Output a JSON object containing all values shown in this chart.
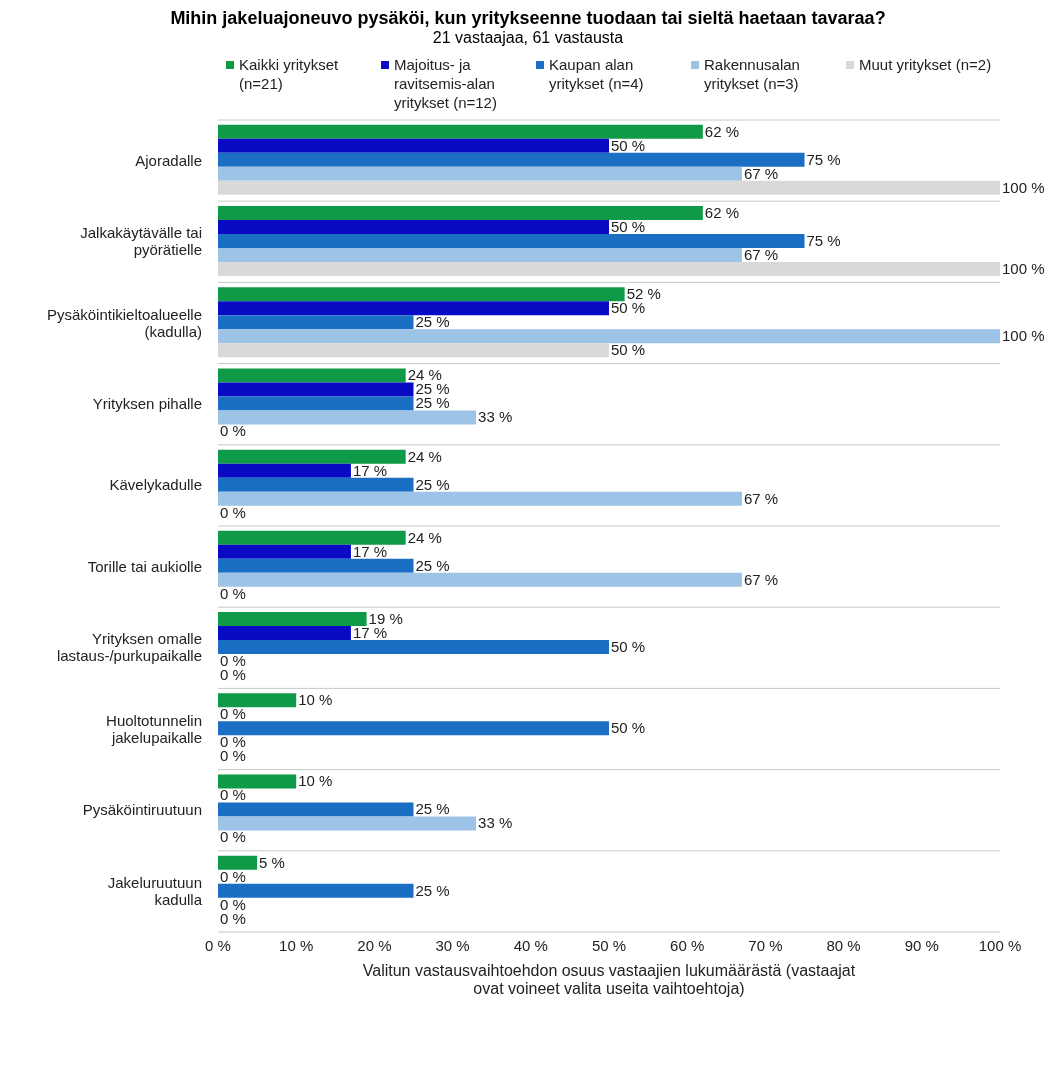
{
  "chart_data": {
    "type": "bar",
    "orientation": "horizontal",
    "title": "Mihin jakeluajoneuvo pysäköi, kun yritykseenne tuodaan tai sieltä haetaan tavaraa?",
    "subtitle": "21 vastaajaa, 61 vastausta",
    "xlabel": "Valitun vastausvaihtoehdon osuus vastaajien lukumäärästä (vastaajat ovat voineet valita useita vaihtoehtoja)",
    "categories": [
      "Ajoradalle",
      "Jalkakäytävälle tai pyörätielle",
      "Pysäköintikieltoalueelle (kadulla)",
      "Yrityksen pihalle",
      "Kävelykadulle",
      "Torille tai aukiolle",
      "Yrityksen omalle lastaus-/purkupaikalle",
      "Huoltotunnelin jakelupaikalle",
      "Pysäköintiruutuun",
      "Jakeluruutuun kadulla"
    ],
    "series": [
      {
        "name": "Kaikki yritykset (n=21)",
        "color": "#0f9a48",
        "values": [
          62,
          62,
          52,
          24,
          24,
          24,
          19,
          10,
          10,
          5
        ],
        "value_labels": [
          "62 %",
          "62 %",
          "52 %",
          "24 %",
          "24 %",
          "24 %",
          "19 %",
          "10 %",
          "10 %",
          "5 %"
        ]
      },
      {
        "name": "Majoitus- ja ravitsemis-alan yritykset (n=12)",
        "color": "#0a0ac4",
        "values": [
          50,
          50,
          50,
          25,
          17,
          17,
          17,
          0,
          0,
          0
        ],
        "value_labels": [
          "50 %",
          "50 %",
          "50 %",
          "25 %",
          "17 %",
          "17 %",
          "17 %",
          "0 %",
          "0 %",
          "0 %"
        ]
      },
      {
        "name": "Kaupan alan yritykset (n=4)",
        "color": "#1a6fc4",
        "values": [
          75,
          75,
          25,
          25,
          25,
          25,
          50,
          50,
          25,
          25
        ],
        "value_labels": [
          "75 %",
          "75 %",
          "25 %",
          "25 %",
          "25 %",
          "25 %",
          "50 %",
          "50 %",
          "25 %",
          "25 %"
        ]
      },
      {
        "name": "Rakennusalan yritykset (n=3)",
        "color": "#9dc3e6",
        "values": [
          67,
          67,
          100,
          33,
          67,
          67,
          0,
          0,
          33,
          0
        ],
        "value_labels": [
          "67 %",
          "67 %",
          "100 %",
          "33 %",
          "67 %",
          "67 %",
          "0 %",
          "0 %",
          "33 %",
          "0 %"
        ]
      },
      {
        "name": "Muut yritykset (n=2)",
        "color": "#d9d9d9",
        "values": [
          100,
          100,
          50,
          0,
          0,
          0,
          0,
          0,
          0,
          0
        ],
        "value_labels": [
          "100 %",
          "100 %",
          "50 %",
          "0 %",
          "0 %",
          "0 %",
          "0 %",
          "0 %",
          "0 %",
          "0 %"
        ]
      }
    ],
    "xlim": [
      0,
      100
    ],
    "xticks": [
      {
        "value": 0,
        "label": "0 %"
      },
      {
        "value": 10,
        "label": "10 %"
      },
      {
        "value": 20,
        "label": "20 %"
      },
      {
        "value": 30,
        "label": "30 %"
      },
      {
        "value": 40,
        "label": "40 %"
      },
      {
        "value": 50,
        "label": "50 %"
      },
      {
        "value": 60,
        "label": "60 %"
      },
      {
        "value": 70,
        "label": "70 %"
      },
      {
        "value": 80,
        "label": "80 %"
      },
      {
        "value": 90,
        "label": "90 %"
      },
      {
        "value": 100,
        "label": "100 %"
      }
    ],
    "grid": "y",
    "legend": "top"
  }
}
